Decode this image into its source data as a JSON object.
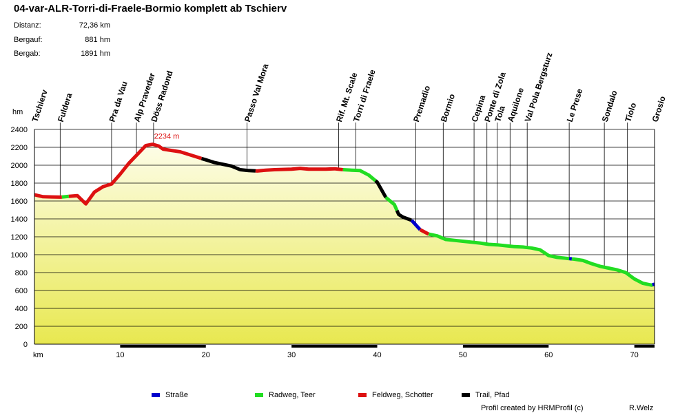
{
  "chart_data": {
    "type": "area",
    "title": "04-var-ALR-Torri-di-Fraele-Bormio komplett ab Tschierv",
    "stats": [
      {
        "label": "Distanz:",
        "value": "72,36 km"
      },
      {
        "label": "Bergauf:",
        "value": "881 hm"
      },
      {
        "label": "Bergab:",
        "value": "1891 hm"
      }
    ],
    "ylabel": "hm",
    "xlabel": "km",
    "xlim": [
      0,
      72.36
    ],
    "ylim": [
      0,
      2400
    ],
    "yticks": [
      0,
      200,
      400,
      600,
      800,
      1000,
      1200,
      1400,
      1600,
      1800,
      2000,
      2200,
      2400
    ],
    "xticks": [
      10,
      20,
      30,
      40,
      50,
      60,
      70
    ],
    "grid": true,
    "max_annotation": {
      "x": 13.8,
      "y": 2234,
      "label": "2234 m"
    },
    "profile": [
      [
        0,
        1670
      ],
      [
        1,
        1648
      ],
      [
        2,
        1645
      ],
      [
        3,
        1643
      ],
      [
        4,
        1652
      ],
      [
        5,
        1660
      ],
      [
        6,
        1568
      ],
      [
        7,
        1700
      ],
      [
        8,
        1760
      ],
      [
        9,
        1790
      ],
      [
        10,
        1900
      ],
      [
        11,
        2020
      ],
      [
        12,
        2120
      ],
      [
        13,
        2220
      ],
      [
        13.8,
        2234
      ],
      [
        14.5,
        2215
      ],
      [
        15,
        2180
      ],
      [
        16,
        2165
      ],
      [
        17,
        2150
      ],
      [
        18,
        2120
      ],
      [
        19,
        2090
      ],
      [
        20,
        2060
      ],
      [
        21,
        2030
      ],
      [
        22,
        2010
      ],
      [
        23,
        1990
      ],
      [
        24,
        1950
      ],
      [
        25,
        1940
      ],
      [
        26,
        1935
      ],
      [
        27,
        1945
      ],
      [
        28,
        1950
      ],
      [
        30,
        1955
      ],
      [
        31,
        1965
      ],
      [
        32,
        1955
      ],
      [
        34,
        1955
      ],
      [
        35,
        1960
      ],
      [
        36,
        1950
      ],
      [
        37,
        1945
      ],
      [
        38,
        1940
      ],
      [
        39,
        1890
      ],
      [
        40,
        1810
      ],
      [
        41,
        1640
      ],
      [
        42,
        1560
      ],
      [
        42.5,
        1450
      ],
      [
        43,
        1420
      ],
      [
        44,
        1385
      ],
      [
        45,
        1280
      ],
      [
        46,
        1230
      ],
      [
        47,
        1210
      ],
      [
        48,
        1170
      ],
      [
        49,
        1160
      ],
      [
        50,
        1150
      ],
      [
        51,
        1140
      ],
      [
        52,
        1130
      ],
      [
        53,
        1115
      ],
      [
        54,
        1110
      ],
      [
        55,
        1100
      ],
      [
        56,
        1090
      ],
      [
        57,
        1085
      ],
      [
        58,
        1075
      ],
      [
        59,
        1055
      ],
      [
        60,
        990
      ],
      [
        61,
        970
      ],
      [
        62,
        960
      ],
      [
        63,
        950
      ],
      [
        64,
        935
      ],
      [
        65,
        900
      ],
      [
        66,
        870
      ],
      [
        67,
        850
      ],
      [
        68,
        830
      ],
      [
        69,
        800
      ],
      [
        70,
        730
      ],
      [
        71,
        680
      ],
      [
        72,
        660
      ],
      [
        72.36,
        670
      ]
    ],
    "surface_segments": [
      {
        "type": "feldweg",
        "from": 0,
        "to": 3.2
      },
      {
        "type": "radweg",
        "from": 3.2,
        "to": 4
      },
      {
        "type": "feldweg",
        "from": 4,
        "to": 19.5
      },
      {
        "type": "trail",
        "from": 19.5,
        "to": 25.8
      },
      {
        "type": "feldweg",
        "from": 25.8,
        "to": 36
      },
      {
        "type": "radweg",
        "from": 36,
        "to": 39.8
      },
      {
        "type": "trail",
        "from": 39.8,
        "to": 41
      },
      {
        "type": "radweg",
        "from": 41,
        "to": 42.3
      },
      {
        "type": "trail",
        "from": 42.3,
        "to": 44
      },
      {
        "type": "strasse",
        "from": 44,
        "to": 45
      },
      {
        "type": "feldweg",
        "from": 45,
        "to": 46
      },
      {
        "type": "radweg",
        "from": 46,
        "to": 62.4
      },
      {
        "type": "strasse",
        "from": 62.4,
        "to": 62.7
      },
      {
        "type": "radweg",
        "from": 62.7,
        "to": 72.1
      },
      {
        "type": "strasse",
        "from": 72.1,
        "to": 72.36
      }
    ],
    "axis_bar_segments": [
      [
        10,
        20
      ],
      [
        30,
        40
      ],
      [
        50,
        60
      ],
      [
        70,
        72.36
      ]
    ],
    "waypoints": [
      {
        "name": "Tschierv",
        "km": 0,
        "tall": false
      },
      {
        "name": "Fuldera",
        "km": 3,
        "tall": true
      },
      {
        "name": "Pra da Vau",
        "km": 9,
        "tall": true
      },
      {
        "name": "Alp Praveder",
        "km": 11.9,
        "tall": true
      },
      {
        "name": "Döss Radond",
        "km": 13.9,
        "tall": true
      },
      {
        "name": "Passo Val Mora",
        "km": 24.8,
        "tall": true
      },
      {
        "name": "Rif. Mt. Scale",
        "km": 35.5,
        "tall": true
      },
      {
        "name": "Torri di Fraele",
        "km": 37.5,
        "tall": true
      },
      {
        "name": "Premadio",
        "km": 44.5,
        "tall": true
      },
      {
        "name": "Bormio",
        "km": 47.7,
        "tall": true
      },
      {
        "name": "Cepina",
        "km": 51.3,
        "tall": true
      },
      {
        "name": "Ponte di Zola",
        "km": 52.8,
        "tall": true
      },
      {
        "name": "Tola",
        "km": 54,
        "tall": true
      },
      {
        "name": "Aquilone",
        "km": 55.5,
        "tall": true
      },
      {
        "name": "Val Pola Bergsturz",
        "km": 57.5,
        "tall": true
      },
      {
        "name": "Le Prese",
        "km": 62.4,
        "tall": true
      },
      {
        "name": "Sondalo",
        "km": 66.5,
        "tall": true
      },
      {
        "name": "Tiolo",
        "km": 69.2,
        "tall": true
      },
      {
        "name": "Grosio",
        "km": 72.36,
        "tall": false
      }
    ],
    "legend": [
      {
        "key": "strasse",
        "label": "Straße",
        "color": "#0000cc"
      },
      {
        "key": "radweg",
        "label": "Radweg, Teer",
        "color": "#22dd22"
      },
      {
        "key": "feldweg",
        "label": "Feldweg, Schotter",
        "color": "#dd1111"
      },
      {
        "key": "trail",
        "label": "Trail, Pfad",
        "color": "#000000"
      }
    ],
    "colors": {
      "fill_top": "#fdfde8",
      "fill_bottom": "#e8e850",
      "annotation": "#dd1111",
      "grid": "#000000"
    }
  },
  "footer": {
    "credit": "Profil created by HRMProfil (c)",
    "author": "R.Welz"
  }
}
